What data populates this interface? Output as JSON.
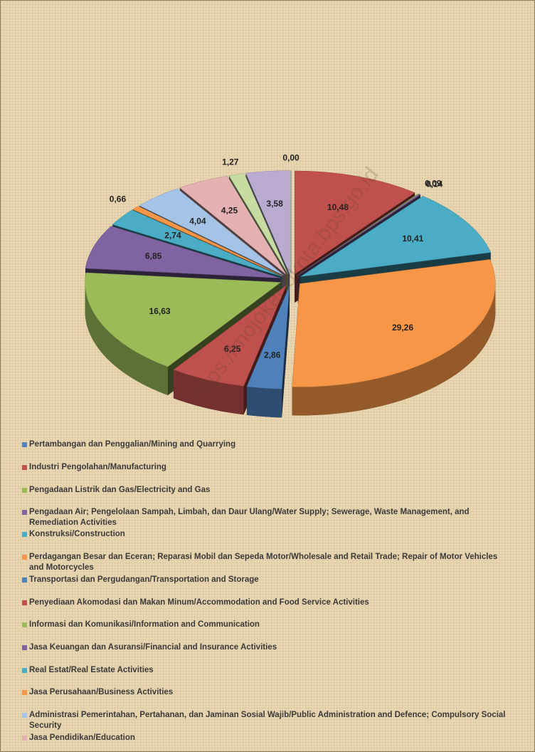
{
  "chart_data": {
    "type": "pie",
    "watermark": "https://mojokertokota.bps.go.id",
    "categories": [
      "Pertambangan dan Penggalian/Mining and Quarrying",
      "Industri Pengolahan/Manufacturing",
      "Pengadaan Listrik dan Gas/Electricity and Gas",
      "Pengadaan Air; Pengelolaan Sampah, Limbah, dan Daur Ulang/Water Supply; Sewerage, Waste Management, and Remediation Activities",
      "Konstruksi/Construction",
      "Perdagangan Besar dan Eceran; Reparasi Mobil dan Sepeda Motor/Wholesale and Retail Trade; Repair of Motor Vehicles and Motorcycles",
      "Transportasi dan Pergudangan/Transportation and Storage",
      "Penyediaan Akomodasi dan Makan Minum/Accommodation and Food Service Activities",
      "Informasi dan Komunikasi/Information and Communication",
      "Jasa Keuangan dan Asuransi/Financial and Insurance Activities",
      "Real Estat/Real Estate Activities",
      "Jasa Perusahaan/Business Activities",
      "Administrasi Pemerintahan, Pertahanan, dan Jaminan Sosial Wajib/Public Administration and Defence; Compulsory Social Security",
      "Jasa Pendidikan/Education",
      null,
      null
    ],
    "values": [
      0.0,
      10.48,
      0.09,
      0.14,
      10.41,
      29.26,
      2.86,
      6.25,
      16.63,
      6.85,
      2.74,
      0.66,
      4.04,
      4.25,
      1.27,
      3.58
    ],
    "value_labels": [
      "0,00",
      "10,48",
      "0,09",
      "0,14",
      "10,41",
      "29,26",
      "2,86",
      "6,25",
      "16,63",
      "6,85",
      "2,74",
      "0,66",
      "4,04",
      "4,25",
      "1,27",
      "3,58"
    ],
    "colors": [
      "#4f81bd",
      "#c0504d",
      "#9bbb59",
      "#8064a2",
      "#4bacc6",
      "#f79646",
      "#4f81bd",
      "#c0504d",
      "#9bbb59",
      "#8064a2",
      "#4bacc6",
      "#f79646",
      "#a5c3e6",
      "#e6b1b3",
      "#c6dca0",
      "#b9abd0"
    ]
  }
}
